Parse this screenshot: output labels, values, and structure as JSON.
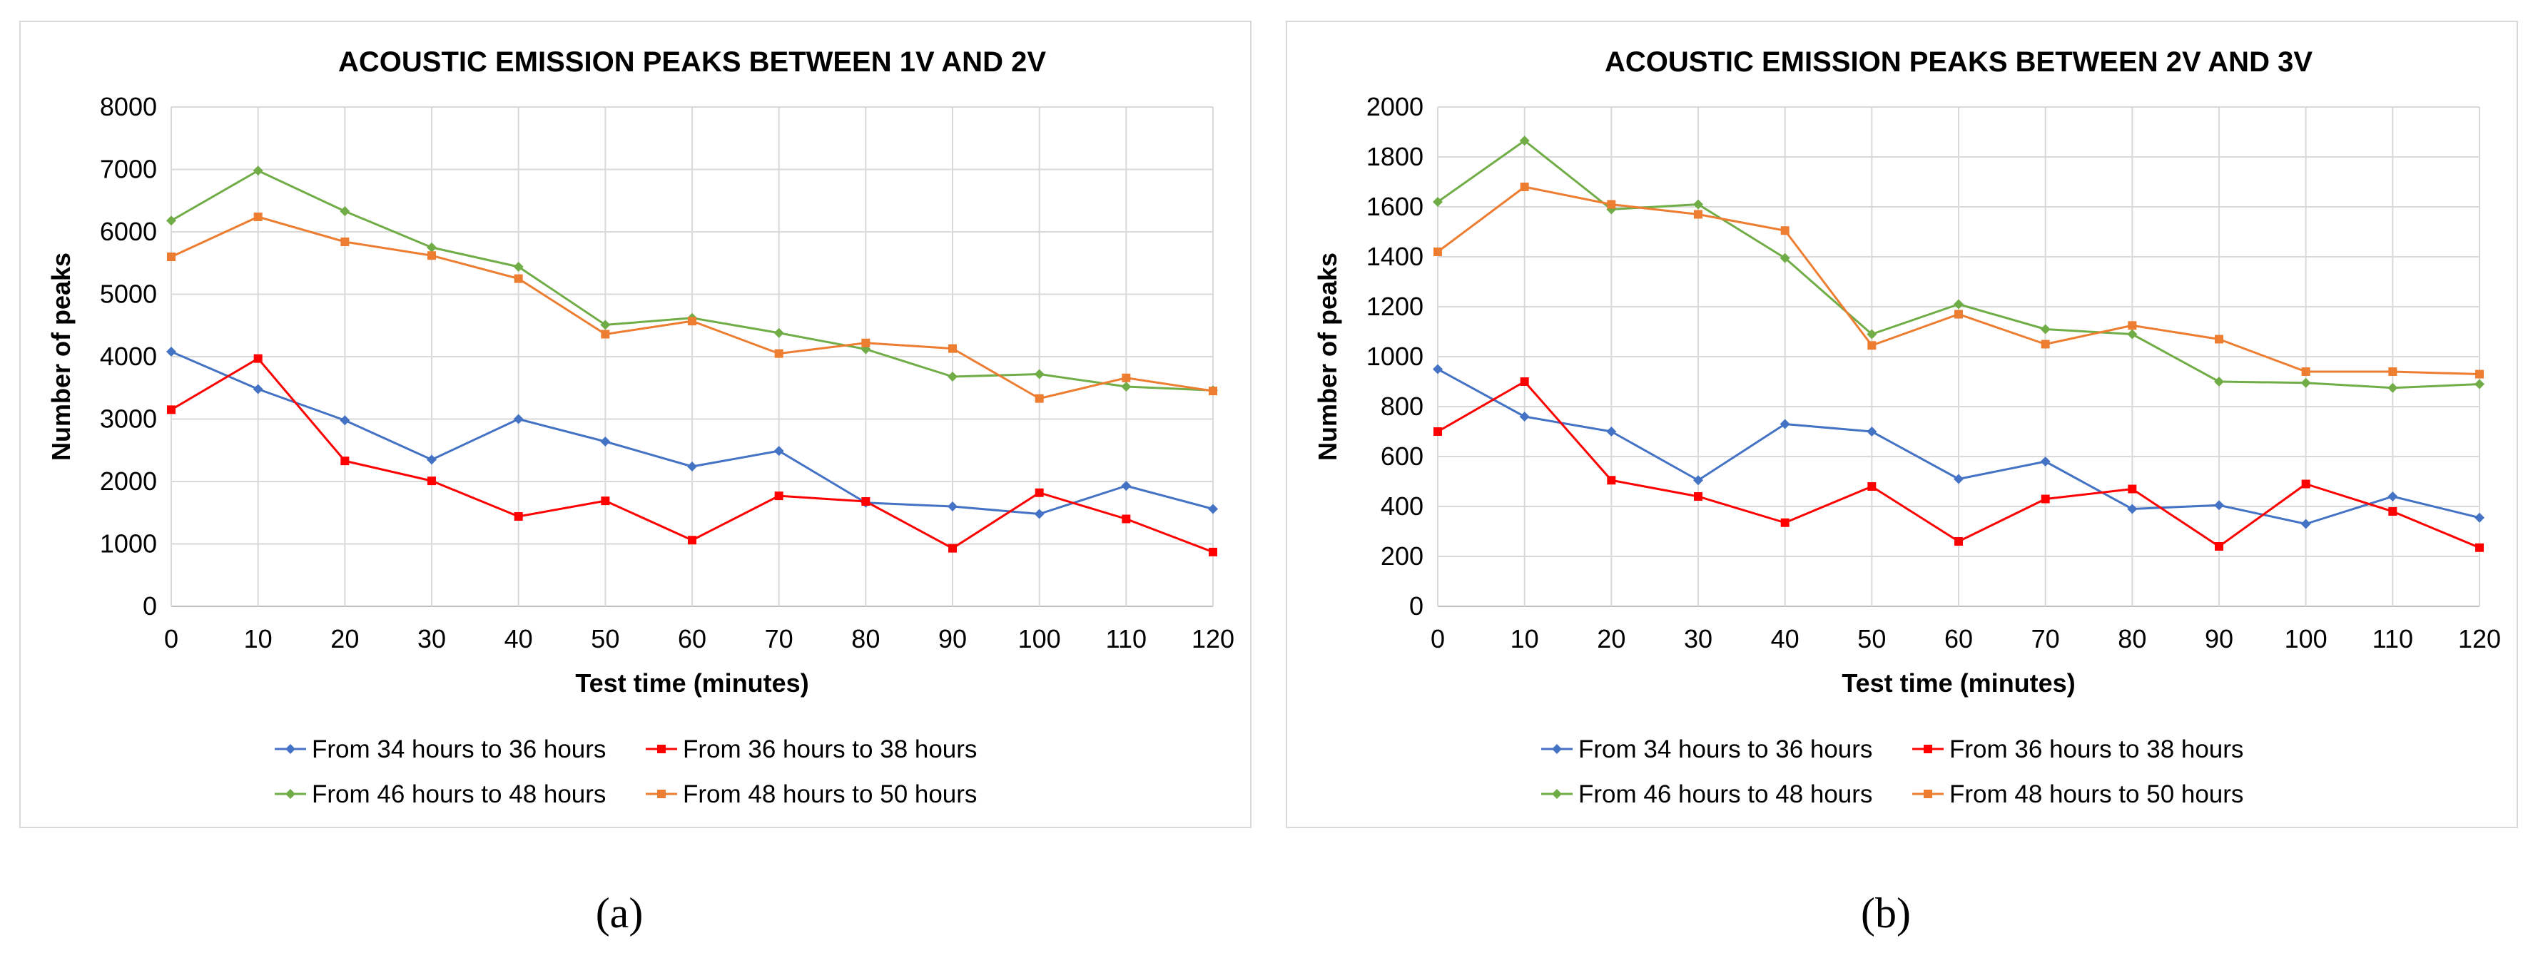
{
  "chart_data": [
    {
      "type": "line",
      "panel_caption": "(a)",
      "title": "ACOUSTIC EMISSION PEAKS BETWEEN 1V AND 2V",
      "xlabel": "Test time (minutes)",
      "ylabel": "Number of peaks",
      "x": [
        0,
        10,
        20,
        30,
        40,
        50,
        60,
        70,
        80,
        90,
        100,
        110,
        120
      ],
      "xticks": [
        "0",
        "10",
        "20",
        "30",
        "40",
        "50",
        "60",
        "70",
        "80",
        "90",
        "100",
        "110",
        "120"
      ],
      "ylim": [
        0,
        8000
      ],
      "yticks": [
        "0",
        "1000",
        "2000",
        "3000",
        "4000",
        "5000",
        "6000",
        "7000",
        "8000"
      ],
      "grid": true,
      "legend": "bottom",
      "series": [
        {
          "name": "From 34 hours to 36 hours",
          "color": "#4472C4",
          "marker": "diamond",
          "values": [
            4080,
            3480,
            2980,
            2350,
            3000,
            2640,
            2240,
            2490,
            1660,
            1600,
            1480,
            1930,
            1560
          ]
        },
        {
          "name": "From 36 hours to 38 hours",
          "color": "#FF0000",
          "marker": "square",
          "values": [
            3150,
            3970,
            2330,
            2010,
            1440,
            1690,
            1060,
            1770,
            1680,
            930,
            1820,
            1400,
            870
          ]
        },
        {
          "name": "From 46 hours to 48 hours",
          "color": "#70AD47",
          "marker": "diamond",
          "values": [
            6180,
            6980,
            6330,
            5750,
            5440,
            4510,
            4620,
            4380,
            4120,
            3680,
            3720,
            3520,
            3460
          ]
        },
        {
          "name": "From 48 hours to 50 hours",
          "color": "#ED7D31",
          "marker": "square",
          "values": [
            5600,
            6240,
            5840,
            5620,
            5250,
            4360,
            4570,
            4050,
            4220,
            4130,
            3330,
            3660,
            3450
          ]
        }
      ]
    },
    {
      "type": "line",
      "panel_caption": "(b)",
      "title": "ACOUSTIC EMISSION PEAKS BETWEEN 2V AND 3V",
      "xlabel": "Test time (minutes)",
      "ylabel": "Number of peaks",
      "x": [
        0,
        10,
        20,
        30,
        40,
        50,
        60,
        70,
        80,
        90,
        100,
        110,
        120
      ],
      "xticks": [
        "0",
        "10",
        "20",
        "30",
        "40",
        "50",
        "60",
        "70",
        "80",
        "90",
        "100",
        "110",
        "120"
      ],
      "ylim": [
        0,
        2000
      ],
      "yticks": [
        "0",
        "200",
        "400",
        "600",
        "800",
        "1000",
        "1200",
        "1400",
        "1600",
        "1800",
        "2000"
      ],
      "grid": true,
      "legend": "bottom",
      "series": [
        {
          "name": "From 34 hours to 36 hours",
          "color": "#4472C4",
          "marker": "diamond",
          "values": [
            950,
            760,
            700,
            505,
            730,
            700,
            510,
            580,
            390,
            405,
            330,
            440,
            355
          ]
        },
        {
          "name": "From 36 hours to 38 hours",
          "color": "#FF0000",
          "marker": "square",
          "values": [
            700,
            900,
            505,
            440,
            335,
            480,
            260,
            430,
            470,
            240,
            490,
            380,
            235
          ]
        },
        {
          "name": "From 46 hours to 48 hours",
          "color": "#70AD47",
          "marker": "diamond",
          "values": [
            1620,
            1865,
            1590,
            1610,
            1395,
            1090,
            1210,
            1110,
            1090,
            900,
            895,
            875,
            890
          ]
        },
        {
          "name": "From 48 hours to 50 hours",
          "color": "#ED7D31",
          "marker": "square",
          "values": [
            1420,
            1680,
            1610,
            1570,
            1505,
            1045,
            1170,
            1050,
            1125,
            1070,
            940,
            940,
            930
          ]
        }
      ]
    }
  ]
}
